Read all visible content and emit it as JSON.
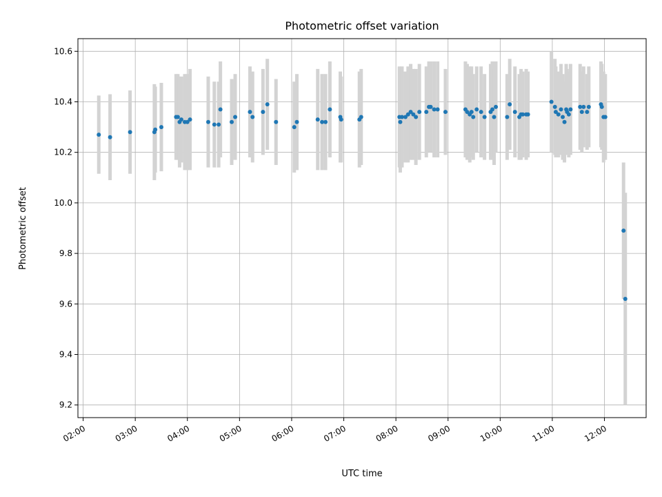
{
  "chart_data": {
    "type": "scatter",
    "title": "Photometric offset variation",
    "xlabel": "UTC time",
    "ylabel": "Photometric offset",
    "xlim": [
      "01:54",
      "12:48"
    ],
    "ylim": [
      9.15,
      10.65
    ],
    "x_ticks": [
      "02:00",
      "03:00",
      "04:00",
      "05:00",
      "06:00",
      "07:00",
      "08:00",
      "09:00",
      "10:00",
      "11:00",
      "12:00"
    ],
    "y_ticks": [
      9.2,
      9.4,
      9.6,
      9.8,
      10.0,
      10.2,
      10.4,
      10.6
    ],
    "grid": true,
    "colors": {
      "marker": "#1f77b4",
      "errorbar": "#d3d3d3",
      "grid": "#b0b0b0",
      "axes": "#000000"
    },
    "series": [
      {
        "x": [
          "02:18",
          "02:31",
          "02:54",
          "03:22",
          "03:23",
          "03:30",
          "03:47",
          "03:49",
          "03:51",
          "03:53",
          "03:57",
          "04:00",
          "04:03",
          "04:24",
          "04:31",
          "04:36",
          "04:38",
          "04:51",
          "04:55",
          "05:12",
          "05:15",
          "05:27",
          "05:32",
          "05:42",
          "06:03",
          "06:06",
          "06:30",
          "06:35",
          "06:39",
          "06:44",
          "06:56",
          "06:57",
          "07:18",
          "07:20",
          "08:04",
          "08:05",
          "08:07",
          "08:11",
          "08:14",
          "08:17",
          "08:20",
          "08:23",
          "08:27",
          "08:35",
          "08:38",
          "08:40",
          "08:44",
          "08:48",
          "08:57",
          "09:20",
          "09:22",
          "09:25",
          "09:27",
          "09:29",
          "09:33",
          "09:38",
          "09:42",
          "09:49",
          "09:51",
          "09:53",
          "09:55",
          "10:08",
          "10:11",
          "10:17",
          "10:22",
          "10:24",
          "10:26",
          "10:30",
          "10:32",
          "10:59",
          "11:03",
          "11:04",
          "11:07",
          "11:10",
          "11:12",
          "11:14",
          "11:16",
          "11:17",
          "11:19",
          "11:21",
          "11:32",
          "11:34",
          "11:36",
          "11:40",
          "11:42",
          "11:56",
          "11:57",
          "11:59",
          "12:01",
          "12:22",
          "12:24"
        ],
        "y": [
          10.27,
          10.26,
          10.28,
          10.28,
          10.29,
          10.3,
          10.34,
          10.34,
          10.32,
          10.33,
          10.32,
          10.32,
          10.33,
          10.32,
          10.31,
          10.31,
          10.37,
          10.32,
          10.34,
          10.36,
          10.34,
          10.36,
          10.39,
          10.32,
          10.3,
          10.32,
          10.33,
          10.32,
          10.32,
          10.37,
          10.34,
          10.33,
          10.33,
          10.34,
          10.34,
          10.32,
          10.34,
          10.34,
          10.35,
          10.36,
          10.35,
          10.34,
          10.36,
          10.36,
          10.38,
          10.38,
          10.37,
          10.37,
          10.36,
          10.37,
          10.36,
          10.35,
          10.36,
          10.34,
          10.37,
          10.36,
          10.34,
          10.36,
          10.37,
          10.34,
          10.38,
          10.34,
          10.39,
          10.36,
          10.34,
          10.35,
          10.35,
          10.35,
          10.35,
          10.4,
          10.38,
          10.36,
          10.35,
          10.37,
          10.34,
          10.32,
          10.37,
          10.36,
          10.35,
          10.37,
          10.38,
          10.36,
          10.38,
          10.36,
          10.38,
          10.39,
          10.38,
          10.34,
          10.34,
          9.89,
          9.62
        ],
        "yerr": [
          0.155,
          0.17,
          0.165,
          0.19,
          0.17,
          0.175,
          0.17,
          0.17,
          0.18,
          0.17,
          0.19,
          0.19,
          0.2,
          0.18,
          0.17,
          0.17,
          0.19,
          0.17,
          0.17,
          0.18,
          0.18,
          0.17,
          0.18,
          0.17,
          0.18,
          0.19,
          0.2,
          0.19,
          0.19,
          0.19,
          0.18,
          0.17,
          0.19,
          0.19,
          0.2,
          0.2,
          0.2,
          0.18,
          0.19,
          0.19,
          0.18,
          0.19,
          0.19,
          0.18,
          0.18,
          0.18,
          0.19,
          0.19,
          0.17,
          0.19,
          0.19,
          0.19,
          0.18,
          0.17,
          0.17,
          0.18,
          0.17,
          0.19,
          0.19,
          0.19,
          0.18,
          0.17,
          0.18,
          0.18,
          0.17,
          0.18,
          0.17,
          0.18,
          0.17,
          0.2,
          0.19,
          0.18,
          0.17,
          0.18,
          0.17,
          0.16,
          0.18,
          0.17,
          0.17,
          0.18,
          0.17,
          0.16,
          0.16,
          0.15,
          0.16,
          0.17,
          0.17,
          0.18,
          0.17,
          0.27,
          0.42
        ]
      }
    ]
  }
}
